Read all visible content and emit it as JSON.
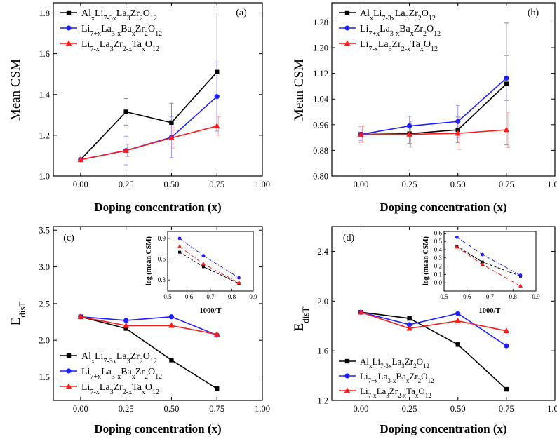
{
  "figure": {
    "colors": {
      "black": "#000000",
      "blue": "#1f1fff",
      "red": "#ff1a1a",
      "errblack": "#8c8c8c",
      "errblue": "#9a9aff",
      "errred": "#ff9a9a",
      "frame": "#000000"
    },
    "legend": {
      "al": [
        {
          "t": "Al"
        },
        {
          "t": "x",
          "s": "sub"
        },
        {
          "t": "Li"
        },
        {
          "t": "7-3x",
          "s": "sub"
        },
        {
          "t": "La"
        },
        {
          "t": "3",
          "s": "sub"
        },
        {
          "t": "Zr"
        },
        {
          "t": "2",
          "s": "sub"
        },
        {
          "t": "O"
        },
        {
          "t": "12",
          "s": "sub"
        }
      ],
      "ba": [
        {
          "t": "Li"
        },
        {
          "t": "7+x",
          "s": "sub"
        },
        {
          "t": "La"
        },
        {
          "t": "3-x",
          "s": "sub"
        },
        {
          "t": "Ba"
        },
        {
          "t": "x",
          "s": "sub"
        },
        {
          "t": "Zr"
        },
        {
          "t": "2",
          "s": "sub"
        },
        {
          "t": "O"
        },
        {
          "t": "12",
          "s": "sub"
        }
      ],
      "ta": [
        {
          "t": "Li"
        },
        {
          "t": "7-x",
          "s": "sub"
        },
        {
          "t": "La"
        },
        {
          "t": "3",
          "s": "sub"
        },
        {
          "t": "Zr"
        },
        {
          "t": "2-x",
          "s": "sub"
        },
        {
          "t": "Ta"
        },
        {
          "t": "x",
          "s": "sub"
        },
        {
          "t": "O"
        },
        {
          "t": "12",
          "s": "sub"
        }
      ]
    },
    "edist_label": [
      {
        "t": "E"
      },
      {
        "t": "disT",
        "s": "sub"
      }
    ]
  },
  "chart_data": [
    {
      "panel": "(a)",
      "type": "line",
      "xlabel": "Doping concentration (x)",
      "ylabel": "Mean CSM",
      "xlim": [
        -0.15,
        1.0
      ],
      "ylim": [
        1.0,
        1.85
      ],
      "xticks": [
        "0.00",
        "0.25",
        "0.50",
        "0.75",
        "1.00"
      ],
      "yticks": [
        "1.0",
        "1.2",
        "1.4",
        "1.6",
        "1.8"
      ],
      "legend_position": "top-left",
      "series": [
        {
          "key": "al",
          "color": "black",
          "marker": "square",
          "x": [
            0,
            0.25,
            0.5,
            0.75
          ],
          "y": [
            1.08,
            1.315,
            1.262,
            1.51
          ],
          "err": [
            0.0,
            0.065,
            0.095,
            0.29
          ]
        },
        {
          "key": "ba",
          "color": "blue",
          "marker": "circle",
          "x": [
            0,
            0.25,
            0.5,
            0.75
          ],
          "y": [
            1.08,
            1.125,
            1.19,
            1.39
          ],
          "err": [
            0.0,
            0.07,
            0.1,
            0.17
          ]
        },
        {
          "key": "ta",
          "color": "red",
          "marker": "triangle",
          "x": [
            0,
            0.25,
            0.5,
            0.75
          ],
          "y": [
            1.08,
            1.125,
            1.187,
            1.245
          ],
          "err": [
            0.0,
            0.03,
            0.05,
            0.045
          ]
        }
      ]
    },
    {
      "panel": "(b)",
      "type": "line",
      "xlabel": "Doping concentration (x)",
      "ylabel": "Mean CSM",
      "xlim": [
        -0.15,
        1.0
      ],
      "ylim": [
        0.8,
        1.34
      ],
      "xticks": [
        "0.00",
        "0.25",
        "0.50",
        "0.75",
        "1.00"
      ],
      "yticks": [
        "0.80",
        "0.88",
        "0.96",
        "1.04",
        "1.12",
        "1.20",
        "1.28"
      ],
      "legend_position": "top-left",
      "series": [
        {
          "key": "al",
          "color": "black",
          "marker": "square",
          "x": [
            0,
            0.25,
            0.5,
            0.75
          ],
          "y": [
            0.93,
            0.932,
            0.944,
            1.087
          ],
          "err": [
            0.025,
            0.03,
            0.04,
            0.19
          ]
        },
        {
          "key": "ba",
          "color": "blue",
          "marker": "circle",
          "x": [
            0,
            0.25,
            0.5,
            0.75
          ],
          "y": [
            0.93,
            0.956,
            0.97,
            1.105
          ],
          "err": [
            0.02,
            0.03,
            0.05,
            0.07
          ]
        },
        {
          "key": "ta",
          "color": "red",
          "marker": "triangle",
          "x": [
            0,
            0.25,
            0.5,
            0.75
          ],
          "y": [
            0.93,
            0.93,
            0.933,
            0.944
          ],
          "err": [
            0.025,
            0.04,
            0.05,
            0.055
          ]
        }
      ]
    },
    {
      "panel": "(c)",
      "type": "line",
      "xlabel": "Doping concentration (x)",
      "ylabel": "EdisT",
      "xlim": [
        -0.15,
        1.0
      ],
      "ylim": [
        1.18,
        3.55
      ],
      "xticks": [
        "0.00",
        "0.25",
        "0.50",
        "0.75",
        "1.00"
      ],
      "yticks": [
        "1.5",
        "2.0",
        "2.5",
        "3.0",
        "3.5"
      ],
      "legend_position": "bottom-left",
      "series": [
        {
          "key": "al",
          "color": "black",
          "marker": "square",
          "x": [
            0,
            0.25,
            0.5,
            0.75
          ],
          "y": [
            2.32,
            2.16,
            1.73,
            1.34
          ]
        },
        {
          "key": "ba",
          "color": "blue",
          "marker": "circle",
          "x": [
            0,
            0.25,
            0.5,
            0.75
          ],
          "y": [
            2.32,
            2.27,
            2.32,
            2.07
          ]
        },
        {
          "key": "ta",
          "color": "red",
          "marker": "triangle",
          "x": [
            0,
            0.25,
            0.5,
            0.75
          ],
          "y": [
            2.32,
            2.2,
            2.2,
            2.08
          ]
        }
      ],
      "inset": {
        "type": "line",
        "xlabel": "1000/T",
        "ylabel": "log (mean CSM)",
        "xlim": [
          0.5,
          0.9
        ],
        "ylim": [
          0.14,
          1.0
        ],
        "xticks": [
          "0.5",
          "0.6",
          "0.7",
          "0.8",
          "0.9"
        ],
        "yticks": [
          "0.3",
          "0.6",
          "0.9"
        ],
        "series": [
          {
            "key": "al",
            "color": "black",
            "marker": "square",
            "style": "dash",
            "x": [
              0.556,
              0.667,
              0.833
            ],
            "y": [
              0.7,
              0.49,
              0.25
            ]
          },
          {
            "key": "ba",
            "color": "blue",
            "marker": "circle",
            "style": "dashdot",
            "x": [
              0.556,
              0.667,
              0.833
            ],
            "y": [
              0.9,
              0.65,
              0.33
            ]
          },
          {
            "key": "ta",
            "color": "red",
            "marker": "triangle",
            "style": "dashdot",
            "x": [
              0.556,
              0.667,
              0.833
            ],
            "y": [
              0.78,
              0.53,
              0.26
            ]
          }
        ]
      }
    },
    {
      "panel": "(d)",
      "type": "line",
      "xlabel": "Doping concentration (x)",
      "ylabel": "EdisT",
      "xlim": [
        -0.15,
        1.0
      ],
      "ylim": [
        1.2,
        2.6
      ],
      "xticks": [
        "0.00",
        "0.25",
        "0.50",
        "0.75",
        "1.00"
      ],
      "yticks": [
        "1.2",
        "1.6",
        "2.0",
        "2.4"
      ],
      "legend_position": "bottom-left",
      "series": [
        {
          "key": "al",
          "color": "black",
          "marker": "square",
          "x": [
            0,
            0.25,
            0.5,
            0.75
          ],
          "y": [
            1.91,
            1.86,
            1.65,
            1.29
          ]
        },
        {
          "key": "ba",
          "color": "blue",
          "marker": "circle",
          "x": [
            0,
            0.25,
            0.5,
            0.75
          ],
          "y": [
            1.91,
            1.81,
            1.9,
            1.64
          ]
        },
        {
          "key": "ta",
          "color": "red",
          "marker": "triangle",
          "x": [
            0,
            0.25,
            0.5,
            0.75
          ],
          "y": [
            1.91,
            1.78,
            1.84,
            1.76
          ]
        }
      ],
      "inset": {
        "type": "line",
        "xlabel": "1000/T",
        "ylabel": "log (mean CSM)",
        "xlim": [
          0.5,
          0.9
        ],
        "ylim": [
          -0.1,
          0.62
        ],
        "xticks": [
          "0.5",
          "0.6",
          "0.7",
          "0.8",
          "0.9"
        ],
        "yticks": [
          "0.0",
          "0.1",
          "0.2",
          "0.3",
          "0.4",
          "0.5",
          "0.6"
        ],
        "series": [
          {
            "key": "al",
            "color": "black",
            "marker": "square",
            "style": "dash",
            "x": [
              0.556,
              0.667,
              0.833
            ],
            "y": [
              0.44,
              0.25,
              0.08
            ]
          },
          {
            "key": "ba",
            "color": "blue",
            "marker": "circle",
            "style": "dashdot",
            "x": [
              0.556,
              0.667,
              0.833
            ],
            "y": [
              0.55,
              0.34,
              0.09
            ]
          },
          {
            "key": "ta",
            "color": "red",
            "marker": "triangle",
            "style": "dashdot",
            "x": [
              0.556,
              0.667,
              0.833
            ],
            "y": [
              0.43,
              0.22,
              -0.04
            ]
          }
        ]
      }
    }
  ]
}
